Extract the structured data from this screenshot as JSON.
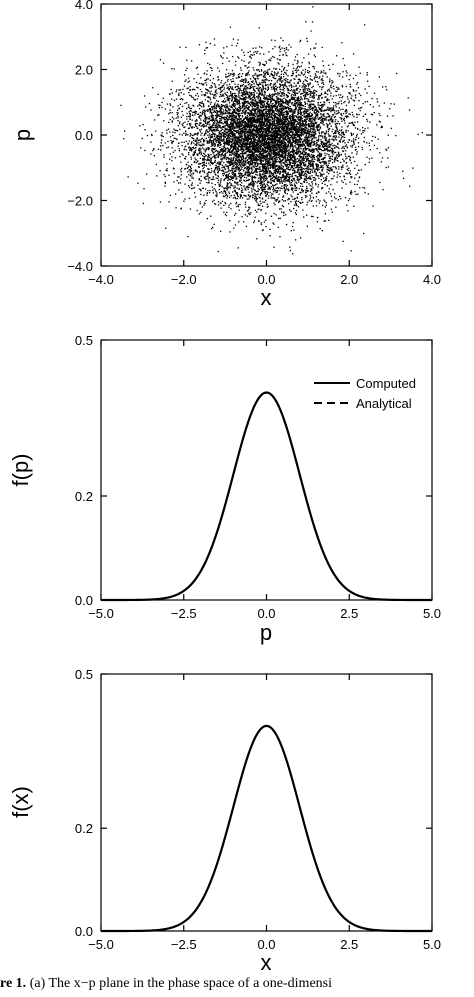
{
  "chart_data": [
    {
      "type": "scatter",
      "xlabel": "x",
      "ylabel": "p",
      "xlim": [
        -4.0,
        4.0
      ],
      "ylim": [
        -4.0,
        4.0
      ],
      "xticks": [
        "-4.0",
        "-2.0",
        "0.0",
        "2.0",
        "4.0"
      ],
      "yticks": [
        "-4.0",
        "-2.0",
        "0.0",
        "2.0",
        "4.0"
      ],
      "distribution": {
        "mean_x": 0.0,
        "mean_p": 0.0,
        "std_x": 1.0,
        "std_p": 1.0
      },
      "grid": false
    },
    {
      "type": "line",
      "xlabel": "p",
      "ylabel": "f(p)",
      "xlim": [
        -5.0,
        5.0
      ],
      "ylim": [
        0.0,
        0.5
      ],
      "xticks": [
        "-5.0",
        "-2.5",
        "0.0",
        "2.5",
        "5.0"
      ],
      "yticks": [
        "0.0",
        "0.2",
        "0.5"
      ],
      "legend": "top-right",
      "series": [
        {
          "name": "Computed",
          "style": "solid",
          "color": "#000000",
          "mean": 0.0,
          "std": 1.0,
          "peak": 0.399
        },
        {
          "name": "Analytical",
          "style": "dashed",
          "color": "#000000",
          "mean": 0.0,
          "std": 1.0,
          "peak": 0.399
        }
      ],
      "grid": false
    },
    {
      "type": "line",
      "xlabel": "x",
      "ylabel": "f(x)",
      "xlim": [
        -5.0,
        5.0
      ],
      "ylim": [
        0.0,
        0.5
      ],
      "xticks": [
        "-5.0",
        "-2.5",
        "0.0",
        "2.5",
        "5.0"
      ],
      "yticks": [
        "0.0",
        "0.2",
        "0.5"
      ],
      "series": [
        {
          "style": "solid",
          "color": "#000000",
          "mean": 0.0,
          "std": 1.0,
          "peak": 0.399
        },
        {
          "style": "dashed",
          "color": "#000000",
          "mean": 0.0,
          "std": 1.0,
          "peak": 0.399
        }
      ],
      "grid": false
    }
  ],
  "caption": {
    "lead": "re 1.",
    "text": "(a) The x−p plane in the phase space of a one-dimensi"
  }
}
